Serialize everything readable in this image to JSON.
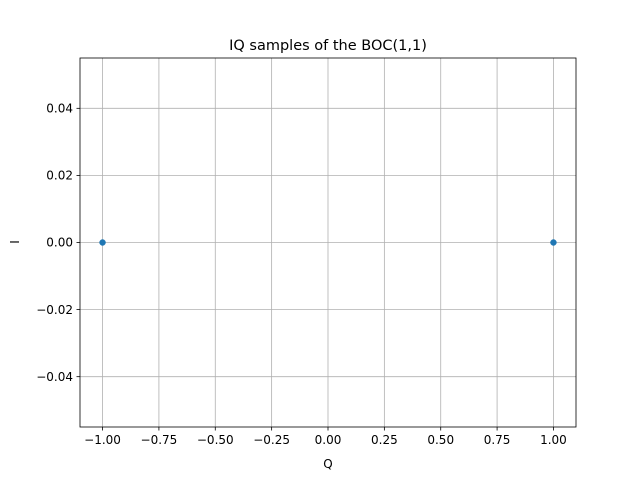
{
  "chart_data": {
    "type": "scatter",
    "title": "IQ samples of the BOC(1,1)",
    "xlabel": "Q",
    "ylabel": "I",
    "xlim": [
      -1.1,
      1.1
    ],
    "ylim": [
      -0.055,
      0.055
    ],
    "xticks": [
      -1.0,
      -0.75,
      -0.5,
      -0.25,
      0.0,
      0.25,
      0.5,
      0.75,
      1.0
    ],
    "xtick_labels": [
      "−1.00",
      "−0.75",
      "−0.50",
      "−0.25",
      "0.00",
      "0.25",
      "0.50",
      "0.75",
      "1.00"
    ],
    "yticks": [
      -0.04,
      -0.02,
      0.0,
      0.02,
      0.04
    ],
    "ytick_labels": [
      "−0.04",
      "−0.02",
      "0.00",
      "0.02",
      "0.04"
    ],
    "grid": true,
    "marker_color": "#1f77b4",
    "series": [
      {
        "x": [
          -1.0,
          1.0
        ],
        "y": [
          0.0,
          0.0
        ]
      }
    ]
  }
}
